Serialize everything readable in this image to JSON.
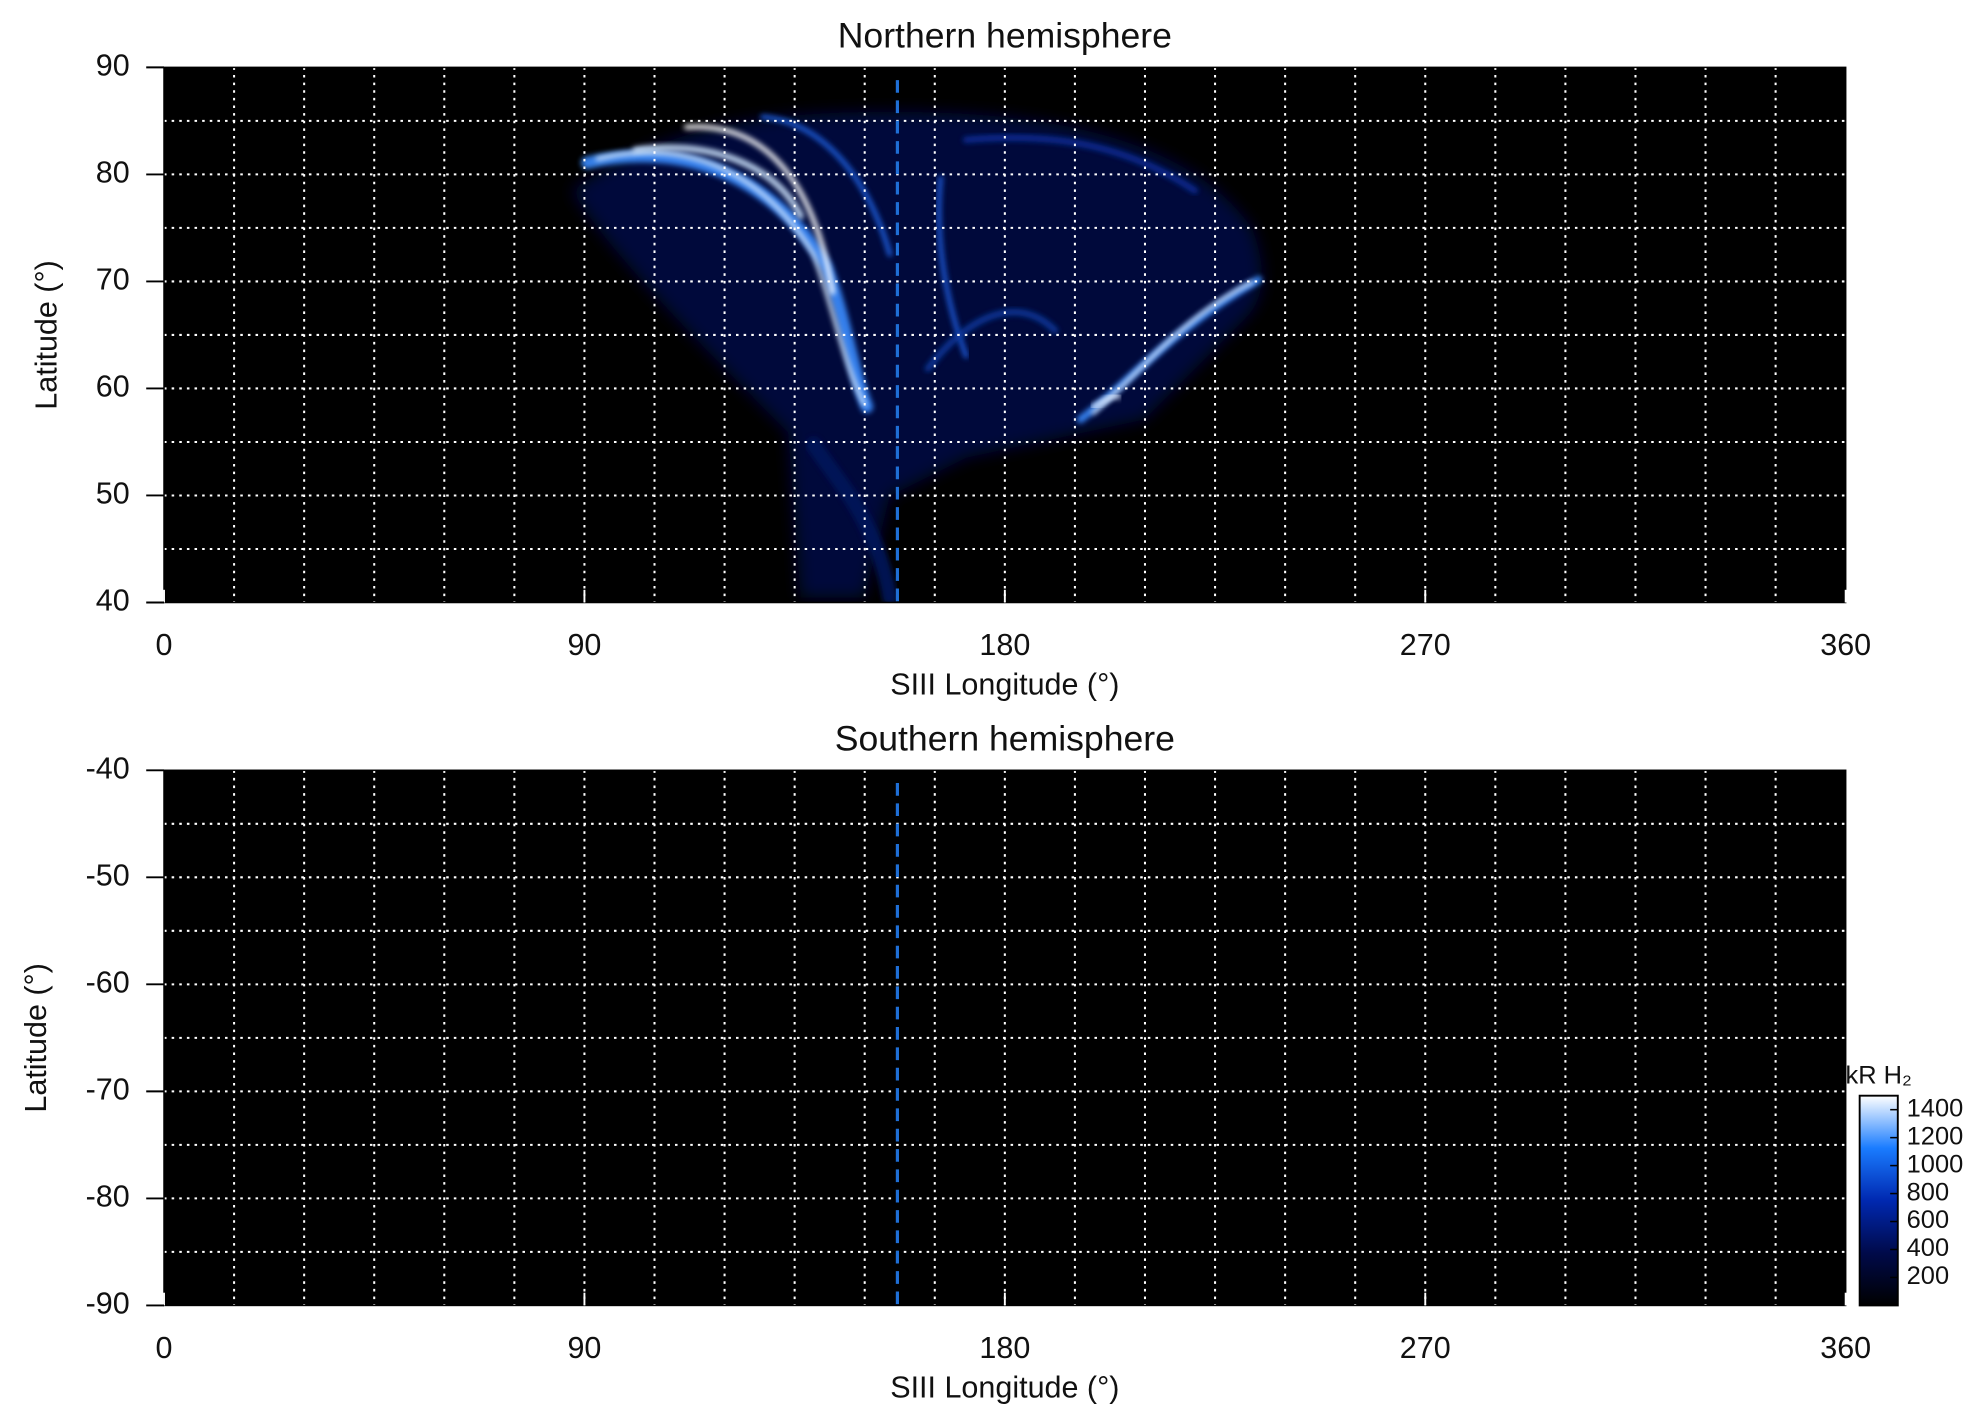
{
  "chart_data": [
    {
      "type": "heatmap",
      "title": "Northern hemisphere",
      "x_label": "SIII Longitude (°)",
      "y_label": "Latitude (°)",
      "xlim": [
        0,
        360
      ],
      "xticks": [
        0,
        90,
        180,
        270,
        360
      ],
      "ylim": [
        40,
        90
      ],
      "yticks": [
        40,
        50,
        60,
        70,
        80,
        90
      ],
      "grid": true,
      "xgrid": [
        15,
        30,
        45,
        60,
        75,
        90,
        105,
        120,
        135,
        150,
        165,
        180,
        195,
        210,
        225,
        240,
        255,
        270,
        285,
        300,
        315,
        330,
        345
      ],
      "ygrid": [
        45,
        50,
        55,
        60,
        65,
        70,
        75,
        80,
        85
      ],
      "reference_x": 157,
      "reference_color": "#1f6fd6"
    },
    {
      "type": "heatmap",
      "title": "Southern hemisphere",
      "x_label": "SIII Longitude (°)",
      "y_label": "Latitude (°)",
      "xlim": [
        0,
        360
      ],
      "xticks": [
        0,
        90,
        180,
        270,
        360
      ],
      "ylim": [
        -90,
        -40
      ],
      "yticks": [
        -90,
        -80,
        -70,
        -60,
        -50,
        -40
      ],
      "grid": true,
      "xgrid": [
        15,
        30,
        45,
        60,
        75,
        90,
        105,
        120,
        135,
        150,
        165,
        180,
        195,
        210,
        225,
        240,
        255,
        270,
        285,
        300,
        315,
        330,
        345
      ],
      "ygrid": [
        -85,
        -80,
        -75,
        -70,
        -65,
        -60,
        -55,
        -50,
        -45
      ],
      "reference_x": 157,
      "reference_color": "#1f6fd6",
      "colorbar": {
        "label": "kR H₂",
        "lim": [
          0,
          1500
        ],
        "ticks": [
          200,
          400,
          600,
          800,
          1000,
          1200,
          1400
        ],
        "colors": [
          "#000000",
          "#000a4a",
          "#0028b0",
          "#1a7cff",
          "#ffffff"
        ]
      }
    }
  ]
}
